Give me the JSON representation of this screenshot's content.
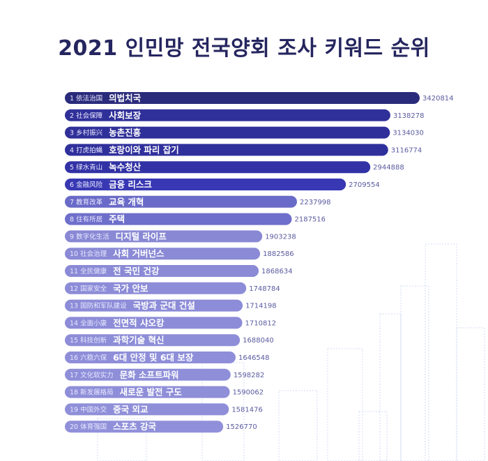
{
  "title": "2021 인민망 전국양회 조사 키워드 순위",
  "chart_data": {
    "type": "bar",
    "orientation": "horizontal",
    "title": "2021 인민망 전국양회 조사 키워드 순위",
    "xlim": [
      0,
      3420814
    ],
    "grid": false,
    "categories": [
      {
        "rank": "1",
        "zh": "依法治国",
        "ko": "의법치국"
      },
      {
        "rank": "2",
        "zh": "社会保障",
        "ko": "사회보장"
      },
      {
        "rank": "3",
        "zh": "乡村振兴",
        "ko": "농촌진흥"
      },
      {
        "rank": "4",
        "zh": "打虎拍蝇",
        "ko": "호랑이와 파리 잡기"
      },
      {
        "rank": "5",
        "zh": "绿水青山",
        "ko": "녹수청산"
      },
      {
        "rank": "6",
        "zh": "金融风险",
        "ko": "금융 리스크"
      },
      {
        "rank": "7",
        "zh": "教育改革",
        "ko": "교육 개혁"
      },
      {
        "rank": "8",
        "zh": "住有所居",
        "ko": "주택"
      },
      {
        "rank": "9",
        "zh": "数字化生活",
        "ko": "디지털 라이프"
      },
      {
        "rank": "10",
        "zh": "社会治理",
        "ko": "사회 거버넌스"
      },
      {
        "rank": "11",
        "zh": "全民健康",
        "ko": "전 국민 건강"
      },
      {
        "rank": "12",
        "zh": "国家安全",
        "ko": "국가 안보"
      },
      {
        "rank": "13",
        "zh": "国防和军队建设",
        "ko": "국방과 군대 건설"
      },
      {
        "rank": "14",
        "zh": "全面小康",
        "ko": "전면적 샤오캉"
      },
      {
        "rank": "15",
        "zh": "科技创新",
        "ko": "과학기술 혁신"
      },
      {
        "rank": "16",
        "zh": "六稳六保",
        "ko": "6대 안정 및 6대 보장"
      },
      {
        "rank": "17",
        "zh": "文化软实力",
        "ko": "문화 소프트파워"
      },
      {
        "rank": "18",
        "zh": "新发展格局",
        "ko": "새로운 발전 구도"
      },
      {
        "rank": "19",
        "zh": "中国外交",
        "ko": "중국 외교"
      },
      {
        "rank": "20",
        "zh": "体育强国",
        "ko": "스포츠 강국"
      }
    ],
    "values": [
      3420814,
      3138278,
      3134030,
      3116774,
      2944888,
      2709554,
      2237998,
      2187516,
      1903238,
      1882586,
      1868634,
      1748784,
      1714198,
      1710812,
      1688040,
      1646548,
      1598282,
      1590062,
      1581476,
      1526770
    ],
    "colors": [
      "#2b2b7c",
      "#30309a",
      "#30309a",
      "#30309c",
      "#3232a6",
      "#3838b4",
      "#6a6ac8",
      "#6e6ecb",
      "#8888d4",
      "#8a8ad6",
      "#8a8ad6",
      "#8c8cd8",
      "#8c8cd8",
      "#8c8cd8",
      "#8d8dd8",
      "#8e8ed9",
      "#8e8ed9",
      "#8e8ed9",
      "#8f8fd9",
      "#9090da"
    ]
  }
}
